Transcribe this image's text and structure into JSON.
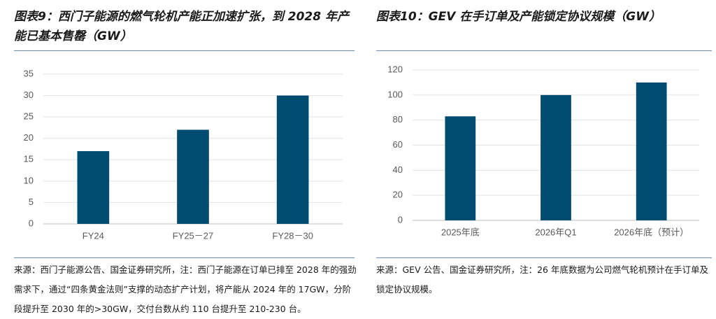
{
  "chart_data": [
    {
      "type": "bar",
      "title": "图表9：西门子能源的燃气轮机产能正加速扩张，到 2028 年产能已基本售罄（GW）",
      "categories": [
        "FY24",
        "FY25－27",
        "FY28－30"
      ],
      "values": [
        17,
        22,
        30
      ],
      "color": "#004b70",
      "ylim": [
        0,
        35
      ],
      "yticks": [
        0,
        5,
        10,
        15,
        20,
        25,
        30,
        35
      ],
      "grid": true,
      "source": "来源：西门子能源公告、国金证券研究所，注：西门子能源在订单已排至 2028 年的强劲需求下，通过“四条黄金法则”支撑的动态扩产计划，将产能从 2024 年的 17GW，分阶段提升至 2030 年的>30GW，交付台数从约 110 台提升至 210-230 台。"
    },
    {
      "type": "bar",
      "title": "图表10：GEV 在手订单及产能锁定协议规模（GW）",
      "categories": [
        "2025年底",
        "2026年Q1",
        "2026年底（预计）"
      ],
      "values": [
        83,
        100,
        110
      ],
      "color": "#004b70",
      "ylim": [
        0,
        120
      ],
      "yticks": [
        0,
        20,
        40,
        60,
        80,
        100,
        120
      ],
      "grid": true,
      "source": "来源：GEV 公告、国金证券研究所，注：26 年底数据为公司燃气轮机预计在手订单及锁定协议规模。"
    }
  ]
}
